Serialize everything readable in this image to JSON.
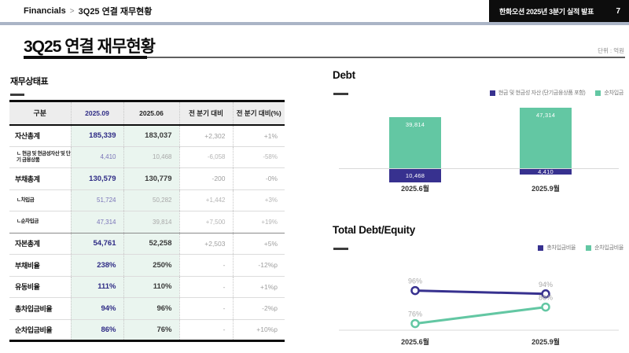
{
  "topbar": {
    "breadcrumb": {
      "root": "Financials",
      "separator": ">",
      "current": "3Q25 연결 재무현황"
    },
    "deck_title": "한화오션 2025년 3분기 실적 발표",
    "page_number": "7"
  },
  "page": {
    "title": "3Q25 연결 재무현황",
    "unit_label": "단위 : 억원"
  },
  "table": {
    "section_label": "재무상태표",
    "headers": [
      "구분",
      "2025.09",
      "2025.06",
      "전 분기 대비",
      "전 분기 대비(%)"
    ],
    "rows": [
      {
        "type": "main",
        "label": "자산총계",
        "v1": "185,339",
        "v2": "183,037",
        "d": "+2,302",
        "dp": "+1%"
      },
      {
        "type": "sub",
        "label": "ㄴ 현금 및 현금성자산 및 단기 금융상품",
        "v1": "4,410",
        "v2": "10,468",
        "d": "-6,058",
        "dp": "-58%"
      },
      {
        "type": "main",
        "label": "부채총계",
        "v1": "130,579",
        "v2": "130,779",
        "d": "-200",
        "dp": "-0%"
      },
      {
        "type": "sub",
        "label": "ㄴ차입금",
        "v1": "51,724",
        "v2": "50,282",
        "d": "+1,442",
        "dp": "+3%"
      },
      {
        "type": "sub",
        "label": "ㄴ순차입금",
        "v1": "47,314",
        "v2": "39,814",
        "d": "+7,500",
        "dp": "+19%"
      },
      {
        "type": "main",
        "label": "자본총계",
        "v1": "54,761",
        "v2": "52,258",
        "d": "+2,503",
        "dp": "+5%",
        "emphasis": true
      },
      {
        "type": "main",
        "label": "부채비율",
        "v1": "238%",
        "v2": "250%",
        "d": "-",
        "dp": "-12%p"
      },
      {
        "type": "main",
        "label": "유동비율",
        "v1": "111%",
        "v2": "110%",
        "d": "-",
        "dp": "+1%p"
      },
      {
        "type": "main",
        "label": "총차입금비율",
        "v1": "94%",
        "v2": "96%",
        "d": "-",
        "dp": "-2%p"
      },
      {
        "type": "main",
        "label": "순차입금비율",
        "v1": "86%",
        "v2": "76%",
        "d": "-",
        "dp": "+10%p"
      }
    ]
  },
  "chart_data": [
    {
      "type": "bar",
      "title": "Debt",
      "stacked": true,
      "legend_position": "top-right",
      "categories": [
        "2025.6월",
        "2025.9월"
      ],
      "series": [
        {
          "name": "현금 및 현금성 자산 (단기금융상품 포함)",
          "color": "#37318f",
          "position": "below-baseline",
          "values": [
            10468,
            4410
          ],
          "labels": [
            "10,468",
            "4,410"
          ]
        },
        {
          "name": "순차입금",
          "color": "#63c7a3",
          "position": "above-baseline",
          "values": [
            39814,
            47314
          ],
          "labels": [
            "39,814",
            "47,314"
          ]
        }
      ]
    },
    {
      "type": "line",
      "title": "Total Debt/Equity",
      "legend_position": "top-right",
      "categories": [
        "2025.6월",
        "2025.9월"
      ],
      "ylim": [
        70,
        100
      ],
      "series": [
        {
          "name": "총차입금비율",
          "color": "#37318f",
          "values": [
            96,
            94
          ],
          "labels": [
            "96%",
            "94%"
          ]
        },
        {
          "name": "순차입금비율",
          "color": "#63c7a3",
          "values": [
            76,
            86
          ],
          "labels": [
            "76%",
            "86%"
          ]
        }
      ]
    }
  ]
}
